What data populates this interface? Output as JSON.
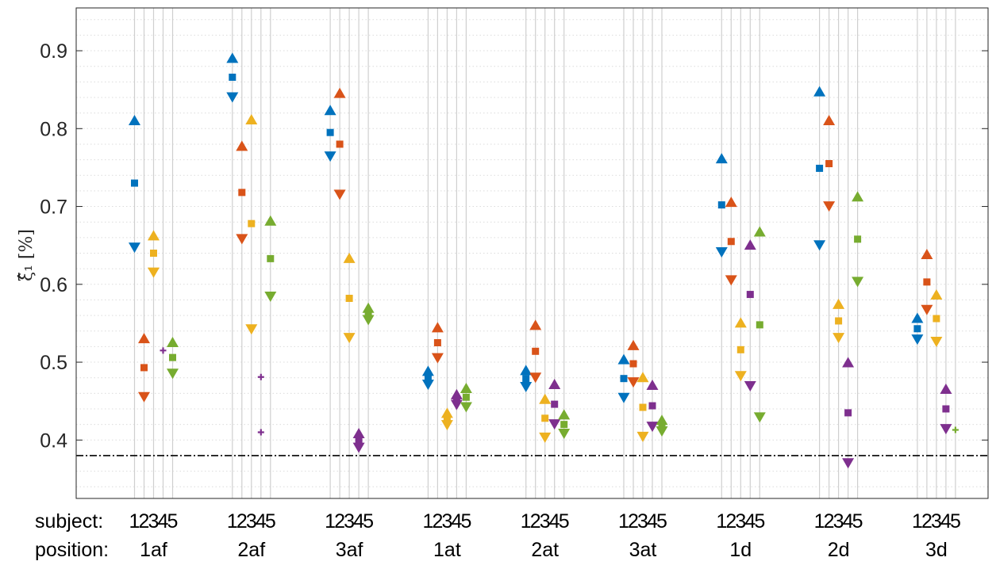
{
  "chart_data": {
    "type": "scatter",
    "ylabel": "ξ̂₁ [%]",
    "ylim": [
      0.325,
      0.955
    ],
    "yticks": [
      0.4,
      0.5,
      0.6,
      0.7,
      0.8,
      0.9
    ],
    "ytick_labels": [
      "0.4",
      "0.5",
      "0.6",
      "0.7",
      "0.8",
      "0.9"
    ],
    "grid": "minor horizontal dotted, vertical lines per subject",
    "reference_line": {
      "value": 0.38,
      "style": "dash-dot"
    },
    "row_labels": {
      "subject": "subject:",
      "position": "position:"
    },
    "subjects": [
      "1",
      "2",
      "3",
      "4",
      "5"
    ],
    "subject_colors": [
      "#0072BD",
      "#D95319",
      "#EDB120",
      "#7E2F8E",
      "#77AC30"
    ],
    "marker_legend": {
      "upper": "triangle-up",
      "estimate": "square",
      "lower": "triangle-down"
    },
    "positions": [
      {
        "name": "1af",
        "subjects": [
          {
            "subject": 1,
            "upper": 0.81,
            "estimate": 0.73,
            "lower": 0.648
          },
          {
            "subject": 2,
            "upper": 0.53,
            "estimate": 0.493,
            "lower": 0.456
          },
          {
            "subject": 3,
            "upper": 0.662,
            "estimate": 0.64,
            "lower": 0.616
          },
          {
            "subject": 4,
            "upper": null,
            "estimate": 0.515,
            "lower": null
          },
          {
            "subject": 5,
            "upper": 0.525,
            "estimate": 0.506,
            "lower": 0.486
          }
        ]
      },
      {
        "name": "2af",
        "subjects": [
          {
            "subject": 1,
            "upper": 0.89,
            "estimate": 0.866,
            "lower": 0.841
          },
          {
            "subject": 2,
            "upper": 0.777,
            "estimate": 0.718,
            "lower": 0.659
          },
          {
            "subject": 3,
            "upper": 0.811,
            "estimate": 0.678,
            "lower": 0.543
          },
          {
            "subject": 4,
            "upper": 0.481,
            "estimate": null,
            "lower": 0.41
          },
          {
            "subject": 5,
            "upper": 0.681,
            "estimate": 0.633,
            "lower": 0.585
          }
        ]
      },
      {
        "name": "3af",
        "subjects": [
          {
            "subject": 1,
            "upper": 0.823,
            "estimate": 0.795,
            "lower": 0.765
          },
          {
            "subject": 2,
            "upper": 0.845,
            "estimate": 0.78,
            "lower": 0.716
          },
          {
            "subject": 3,
            "upper": 0.633,
            "estimate": 0.582,
            "lower": 0.532
          },
          {
            "subject": 4,
            "upper": 0.408,
            "estimate": 0.4,
            "lower": 0.391
          },
          {
            "subject": 5,
            "upper": 0.569,
            "estimate": 0.563,
            "lower": 0.555
          }
        ]
      },
      {
        "name": "1at",
        "subjects": [
          {
            "subject": 1,
            "upper": 0.488,
            "estimate": 0.48,
            "lower": 0.472
          },
          {
            "subject": 2,
            "upper": 0.544,
            "estimate": 0.525,
            "lower": 0.506
          },
          {
            "subject": 3,
            "upper": 0.434,
            "estimate": 0.427,
            "lower": 0.42
          },
          {
            "subject": 4,
            "upper": 0.458,
            "estimate": 0.452,
            "lower": 0.446
          },
          {
            "subject": 5,
            "upper": 0.466,
            "estimate": 0.455,
            "lower": 0.443
          }
        ]
      },
      {
        "name": "2at",
        "subjects": [
          {
            "subject": 1,
            "upper": 0.489,
            "estimate": 0.479,
            "lower": 0.469
          },
          {
            "subject": 2,
            "upper": 0.547,
            "estimate": 0.514,
            "lower": 0.481
          },
          {
            "subject": 3,
            "upper": 0.452,
            "estimate": 0.428,
            "lower": 0.404
          },
          {
            "subject": 4,
            "upper": 0.471,
            "estimate": 0.446,
            "lower": 0.421
          },
          {
            "subject": 5,
            "upper": 0.432,
            "estimate": 0.42,
            "lower": 0.409
          }
        ]
      },
      {
        "name": "3at",
        "subjects": [
          {
            "subject": 1,
            "upper": 0.503,
            "estimate": 0.479,
            "lower": 0.455
          },
          {
            "subject": 2,
            "upper": 0.521,
            "estimate": 0.498,
            "lower": 0.475
          },
          {
            "subject": 3,
            "upper": 0.48,
            "estimate": 0.442,
            "lower": 0.405
          },
          {
            "subject": 4,
            "upper": 0.47,
            "estimate": 0.444,
            "lower": 0.418
          },
          {
            "subject": 5,
            "upper": 0.425,
            "estimate": 0.418,
            "lower": 0.412
          }
        ]
      },
      {
        "name": "1d",
        "subjects": [
          {
            "subject": 1,
            "upper": 0.761,
            "estimate": 0.702,
            "lower": 0.642
          },
          {
            "subject": 2,
            "upper": 0.705,
            "estimate": 0.655,
            "lower": 0.606
          },
          {
            "subject": 3,
            "upper": 0.55,
            "estimate": 0.516,
            "lower": 0.483
          },
          {
            "subject": 4,
            "upper": 0.65,
            "estimate": 0.587,
            "lower": 0.47
          },
          {
            "subject": 5,
            "upper": 0.667,
            "estimate": 0.548,
            "lower": 0.43
          }
        ]
      },
      {
        "name": "2d",
        "subjects": [
          {
            "subject": 1,
            "upper": 0.847,
            "estimate": 0.749,
            "lower": 0.651
          },
          {
            "subject": 2,
            "upper": 0.81,
            "estimate": 0.755,
            "lower": 0.701
          },
          {
            "subject": 3,
            "upper": 0.574,
            "estimate": 0.553,
            "lower": 0.532
          },
          {
            "subject": 4,
            "upper": 0.499,
            "estimate": 0.435,
            "lower": 0.371
          },
          {
            "subject": 5,
            "upper": 0.712,
            "estimate": 0.658,
            "lower": 0.604
          }
        ]
      },
      {
        "name": "3d",
        "subjects": [
          {
            "subject": 1,
            "upper": 0.556,
            "estimate": 0.543,
            "lower": 0.53
          },
          {
            "subject": 2,
            "upper": 0.638,
            "estimate": 0.603,
            "lower": 0.568
          },
          {
            "subject": 3,
            "upper": 0.586,
            "estimate": 0.556,
            "lower": 0.527
          },
          {
            "subject": 4,
            "upper": 0.465,
            "estimate": 0.44,
            "lower": 0.415
          },
          {
            "subject": 5,
            "upper": null,
            "estimate": 0.413,
            "lower": null
          }
        ]
      }
    ]
  }
}
